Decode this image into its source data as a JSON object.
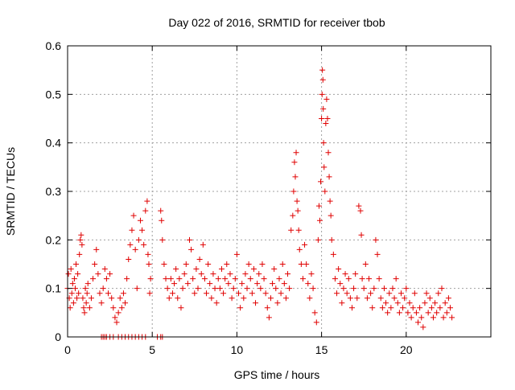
{
  "chart_data": {
    "type": "scatter",
    "title": "Day 022 of 2016, SRMTID for receiver tbob",
    "xlabel": "GPS time / hours",
    "ylabel": "SRMTID / TECUs",
    "xlim": [
      0,
      25
    ],
    "ylim": [
      0,
      0.6
    ],
    "x_ticks": [
      0,
      5,
      10,
      15,
      20
    ],
    "x_tick_labels": [
      "0",
      "5",
      "10",
      "15",
      "20"
    ],
    "y_ticks": [
      0,
      0.1,
      0.2,
      0.3,
      0.4,
      0.5,
      0.6
    ],
    "y_tick_labels": [
      "0",
      "0.1",
      "0.2",
      "0.3",
      "0.4",
      "0.5",
      "0.6"
    ],
    "grid": true,
    "marker": "plus",
    "series": [
      {
        "name": "SRMTID",
        "color": "#e00000",
        "points": [
          [
            0.0,
            0.1
          ],
          [
            0.05,
            0.13
          ],
          [
            0.1,
            0.08
          ],
          [
            0.15,
            0.06
          ],
          [
            0.2,
            0.14
          ],
          [
            0.25,
            0.09
          ],
          [
            0.3,
            0.11
          ],
          [
            0.35,
            0.07
          ],
          [
            0.4,
            0.12
          ],
          [
            0.45,
            0.1
          ],
          [
            0.5,
            0.15
          ],
          [
            0.55,
            0.08
          ],
          [
            0.6,
            0.13
          ],
          [
            0.65,
            0.09
          ],
          [
            0.7,
            0.17
          ],
          [
            0.75,
            0.2
          ],
          [
            0.8,
            0.21
          ],
          [
            0.85,
            0.19
          ],
          [
            0.9,
            0.08
          ],
          [
            0.95,
            0.06
          ],
          [
            1.0,
            0.05
          ],
          [
            1.05,
            0.1
          ],
          [
            1.1,
            0.07
          ],
          [
            1.15,
            0.09
          ],
          [
            1.2,
            0.11
          ],
          [
            1.3,
            0.06
          ],
          [
            1.4,
            0.08
          ],
          [
            1.5,
            0.12
          ],
          [
            1.6,
            0.15
          ],
          [
            1.7,
            0.18
          ],
          [
            1.8,
            0.13
          ],
          [
            1.9,
            0.09
          ],
          [
            2.0,
            0.07
          ],
          [
            2.1,
            0.1
          ],
          [
            2.2,
            0.14
          ],
          [
            2.3,
            0.12
          ],
          [
            2.4,
            0.09
          ],
          [
            2.5,
            0.13
          ],
          [
            2.6,
            0.08
          ],
          [
            2.7,
            0.06
          ],
          [
            2.8,
            0.04
          ],
          [
            2.9,
            0.03
          ],
          [
            3.0,
            0.05
          ],
          [
            3.1,
            0.08
          ],
          [
            3.2,
            0.06
          ],
          [
            3.3,
            0.09
          ],
          [
            3.4,
            0.07
          ],
          [
            3.5,
            0.12
          ],
          [
            3.6,
            0.16
          ],
          [
            3.7,
            0.19
          ],
          [
            3.8,
            0.22
          ],
          [
            3.9,
            0.25
          ],
          [
            4.0,
            0.18
          ],
          [
            4.1,
            0.1
          ],
          [
            4.2,
            0.2
          ],
          [
            4.3,
            0.24
          ],
          [
            4.4,
            0.22
          ],
          [
            4.5,
            0.19
          ],
          [
            4.6,
            0.26
          ],
          [
            4.7,
            0.28
          ],
          [
            4.75,
            0.17
          ],
          [
            4.8,
            0.15
          ],
          [
            4.85,
            0.09
          ],
          [
            4.9,
            0.12
          ],
          [
            2.0,
            0.0
          ],
          [
            2.1,
            0.0
          ],
          [
            2.2,
            0.0
          ],
          [
            2.3,
            0.0
          ],
          [
            2.5,
            0.0
          ],
          [
            2.7,
            0.0
          ],
          [
            3.0,
            0.0
          ],
          [
            3.2,
            0.0
          ],
          [
            3.4,
            0.0
          ],
          [
            3.6,
            0.0
          ],
          [
            3.8,
            0.0
          ],
          [
            4.0,
            0.0
          ],
          [
            4.2,
            0.0
          ],
          [
            4.4,
            0.0
          ],
          [
            4.6,
            0.0
          ],
          [
            5.3,
            0.0
          ],
          [
            5.5,
            0.0
          ],
          [
            5.6,
            0.0
          ],
          [
            5.5,
            0.26
          ],
          [
            5.55,
            0.24
          ],
          [
            5.6,
            0.2
          ],
          [
            5.7,
            0.15
          ],
          [
            5.8,
            0.12
          ],
          [
            5.9,
            0.1
          ],
          [
            6.0,
            0.08
          ],
          [
            6.1,
            0.12
          ],
          [
            6.2,
            0.09
          ],
          [
            6.3,
            0.11
          ],
          [
            6.4,
            0.14
          ],
          [
            6.5,
            0.08
          ],
          [
            6.6,
            0.12
          ],
          [
            6.7,
            0.06
          ],
          [
            6.8,
            0.1
          ],
          [
            6.9,
            0.13
          ],
          [
            7.0,
            0.15
          ],
          [
            7.1,
            0.11
          ],
          [
            7.2,
            0.2
          ],
          [
            7.3,
            0.18
          ],
          [
            7.4,
            0.12
          ],
          [
            7.5,
            0.09
          ],
          [
            7.6,
            0.14
          ],
          [
            7.7,
            0.1
          ],
          [
            7.8,
            0.16
          ],
          [
            7.9,
            0.13
          ],
          [
            8.0,
            0.19
          ],
          [
            8.1,
            0.12
          ],
          [
            8.2,
            0.09
          ],
          [
            8.3,
            0.15
          ],
          [
            8.4,
            0.11
          ],
          [
            8.5,
            0.08
          ],
          [
            8.6,
            0.13
          ],
          [
            8.7,
            0.1
          ],
          [
            8.8,
            0.07
          ],
          [
            8.9,
            0.12
          ],
          [
            9.0,
            0.1
          ],
          [
            9.1,
            0.14
          ],
          [
            9.2,
            0.09
          ],
          [
            9.3,
            0.12
          ],
          [
            9.4,
            0.15
          ],
          [
            9.5,
            0.11
          ],
          [
            9.6,
            0.13
          ],
          [
            9.7,
            0.08
          ],
          [
            9.8,
            0.1
          ],
          [
            9.9,
            0.12
          ],
          [
            10.0,
            0.17
          ],
          [
            10.1,
            0.09
          ],
          [
            10.2,
            0.06
          ],
          [
            10.3,
            0.11
          ],
          [
            10.4,
            0.08
          ],
          [
            10.5,
            0.13
          ],
          [
            10.6,
            0.1
          ],
          [
            10.7,
            0.15
          ],
          [
            10.8,
            0.12
          ],
          [
            10.9,
            0.09
          ],
          [
            11.0,
            0.14
          ],
          [
            11.1,
            0.07
          ],
          [
            11.2,
            0.11
          ],
          [
            11.3,
            0.13
          ],
          [
            11.4,
            0.1
          ],
          [
            11.5,
            0.15
          ],
          [
            11.6,
            0.12
          ],
          [
            11.7,
            0.09
          ],
          [
            11.8,
            0.06
          ],
          [
            11.9,
            0.04
          ],
          [
            12.0,
            0.08
          ],
          [
            12.1,
            0.11
          ],
          [
            12.2,
            0.14
          ],
          [
            12.3,
            0.1
          ],
          [
            12.4,
            0.07
          ],
          [
            12.5,
            0.12
          ],
          [
            12.6,
            0.09
          ],
          [
            12.7,
            0.15
          ],
          [
            12.8,
            0.11
          ],
          [
            12.9,
            0.08
          ],
          [
            13.0,
            0.13
          ],
          [
            13.1,
            0.1
          ],
          [
            13.2,
            0.22
          ],
          [
            13.3,
            0.25
          ],
          [
            13.35,
            0.3
          ],
          [
            13.4,
            0.36
          ],
          [
            13.45,
            0.33
          ],
          [
            13.5,
            0.38
          ],
          [
            13.55,
            0.28
          ],
          [
            13.6,
            0.26
          ],
          [
            13.65,
            0.22
          ],
          [
            13.7,
            0.18
          ],
          [
            13.8,
            0.15
          ],
          [
            13.9,
            0.12
          ],
          [
            14.0,
            0.19
          ],
          [
            14.1,
            0.15
          ],
          [
            14.2,
            0.11
          ],
          [
            14.3,
            0.08
          ],
          [
            14.4,
            0.13
          ],
          [
            14.5,
            0.1
          ],
          [
            14.6,
            0.05
          ],
          [
            14.7,
            0.03
          ],
          [
            14.8,
            0.2
          ],
          [
            14.85,
            0.27
          ],
          [
            14.9,
            0.24
          ],
          [
            14.95,
            0.32
          ],
          [
            15.0,
            0.45
          ],
          [
            15.03,
            0.5
          ],
          [
            15.05,
            0.55
          ],
          [
            15.08,
            0.53
          ],
          [
            15.1,
            0.47
          ],
          [
            15.12,
            0.4
          ],
          [
            15.15,
            0.35
          ],
          [
            15.2,
            0.3
          ],
          [
            15.25,
            0.44
          ],
          [
            15.3,
            0.49
          ],
          [
            15.35,
            0.45
          ],
          [
            15.4,
            0.38
          ],
          [
            15.45,
            0.33
          ],
          [
            15.5,
            0.28
          ],
          [
            15.55,
            0.25
          ],
          [
            15.6,
            0.2
          ],
          [
            15.7,
            0.17
          ],
          [
            15.8,
            0.12
          ],
          [
            15.9,
            0.09
          ],
          [
            16.0,
            0.14
          ],
          [
            16.1,
            0.11
          ],
          [
            16.2,
            0.07
          ],
          [
            16.3,
            0.1
          ],
          [
            16.4,
            0.13
          ],
          [
            16.5,
            0.09
          ],
          [
            16.6,
            0.12
          ],
          [
            16.7,
            0.08
          ],
          [
            16.8,
            0.06
          ],
          [
            16.9,
            0.1
          ],
          [
            17.0,
            0.13
          ],
          [
            17.1,
            0.08
          ],
          [
            17.2,
            0.27
          ],
          [
            17.3,
            0.26
          ],
          [
            17.35,
            0.21
          ],
          [
            17.4,
            0.12
          ],
          [
            17.5,
            0.1
          ],
          [
            17.6,
            0.15
          ],
          [
            17.7,
            0.08
          ],
          [
            17.8,
            0.12
          ],
          [
            17.9,
            0.09
          ],
          [
            18.0,
            0.06
          ],
          [
            18.1,
            0.1
          ],
          [
            18.2,
            0.2
          ],
          [
            18.3,
            0.17
          ],
          [
            18.4,
            0.12
          ],
          [
            18.5,
            0.08
          ],
          [
            18.6,
            0.06
          ],
          [
            18.7,
            0.1
          ],
          [
            18.8,
            0.07
          ],
          [
            18.9,
            0.05
          ],
          [
            19.0,
            0.09
          ],
          [
            19.1,
            0.06
          ],
          [
            19.2,
            0.1
          ],
          [
            19.3,
            0.08
          ],
          [
            19.4,
            0.12
          ],
          [
            19.5,
            0.07
          ],
          [
            19.6,
            0.05
          ],
          [
            19.7,
            0.09
          ],
          [
            19.8,
            0.06
          ],
          [
            19.9,
            0.08
          ],
          [
            20.0,
            0.1
          ],
          [
            20.1,
            0.05
          ],
          [
            20.2,
            0.07
          ],
          [
            20.3,
            0.04
          ],
          [
            20.4,
            0.06
          ],
          [
            20.5,
            0.09
          ],
          [
            20.6,
            0.05
          ],
          [
            20.7,
            0.03
          ],
          [
            20.8,
            0.06
          ],
          [
            20.9,
            0.04
          ],
          [
            21.0,
            0.02
          ],
          [
            21.1,
            0.07
          ],
          [
            21.2,
            0.09
          ],
          [
            21.3,
            0.05
          ],
          [
            21.4,
            0.08
          ],
          [
            21.5,
            0.06
          ],
          [
            21.6,
            0.04
          ],
          [
            21.7,
            0.07
          ],
          [
            21.8,
            0.05
          ],
          [
            21.9,
            0.09
          ],
          [
            22.0,
            0.06
          ],
          [
            22.1,
            0.1
          ],
          [
            22.2,
            0.04
          ],
          [
            22.3,
            0.07
          ],
          [
            22.4,
            0.05
          ],
          [
            22.5,
            0.08
          ],
          [
            22.6,
            0.06
          ],
          [
            22.7,
            0.04
          ]
        ]
      }
    ]
  }
}
